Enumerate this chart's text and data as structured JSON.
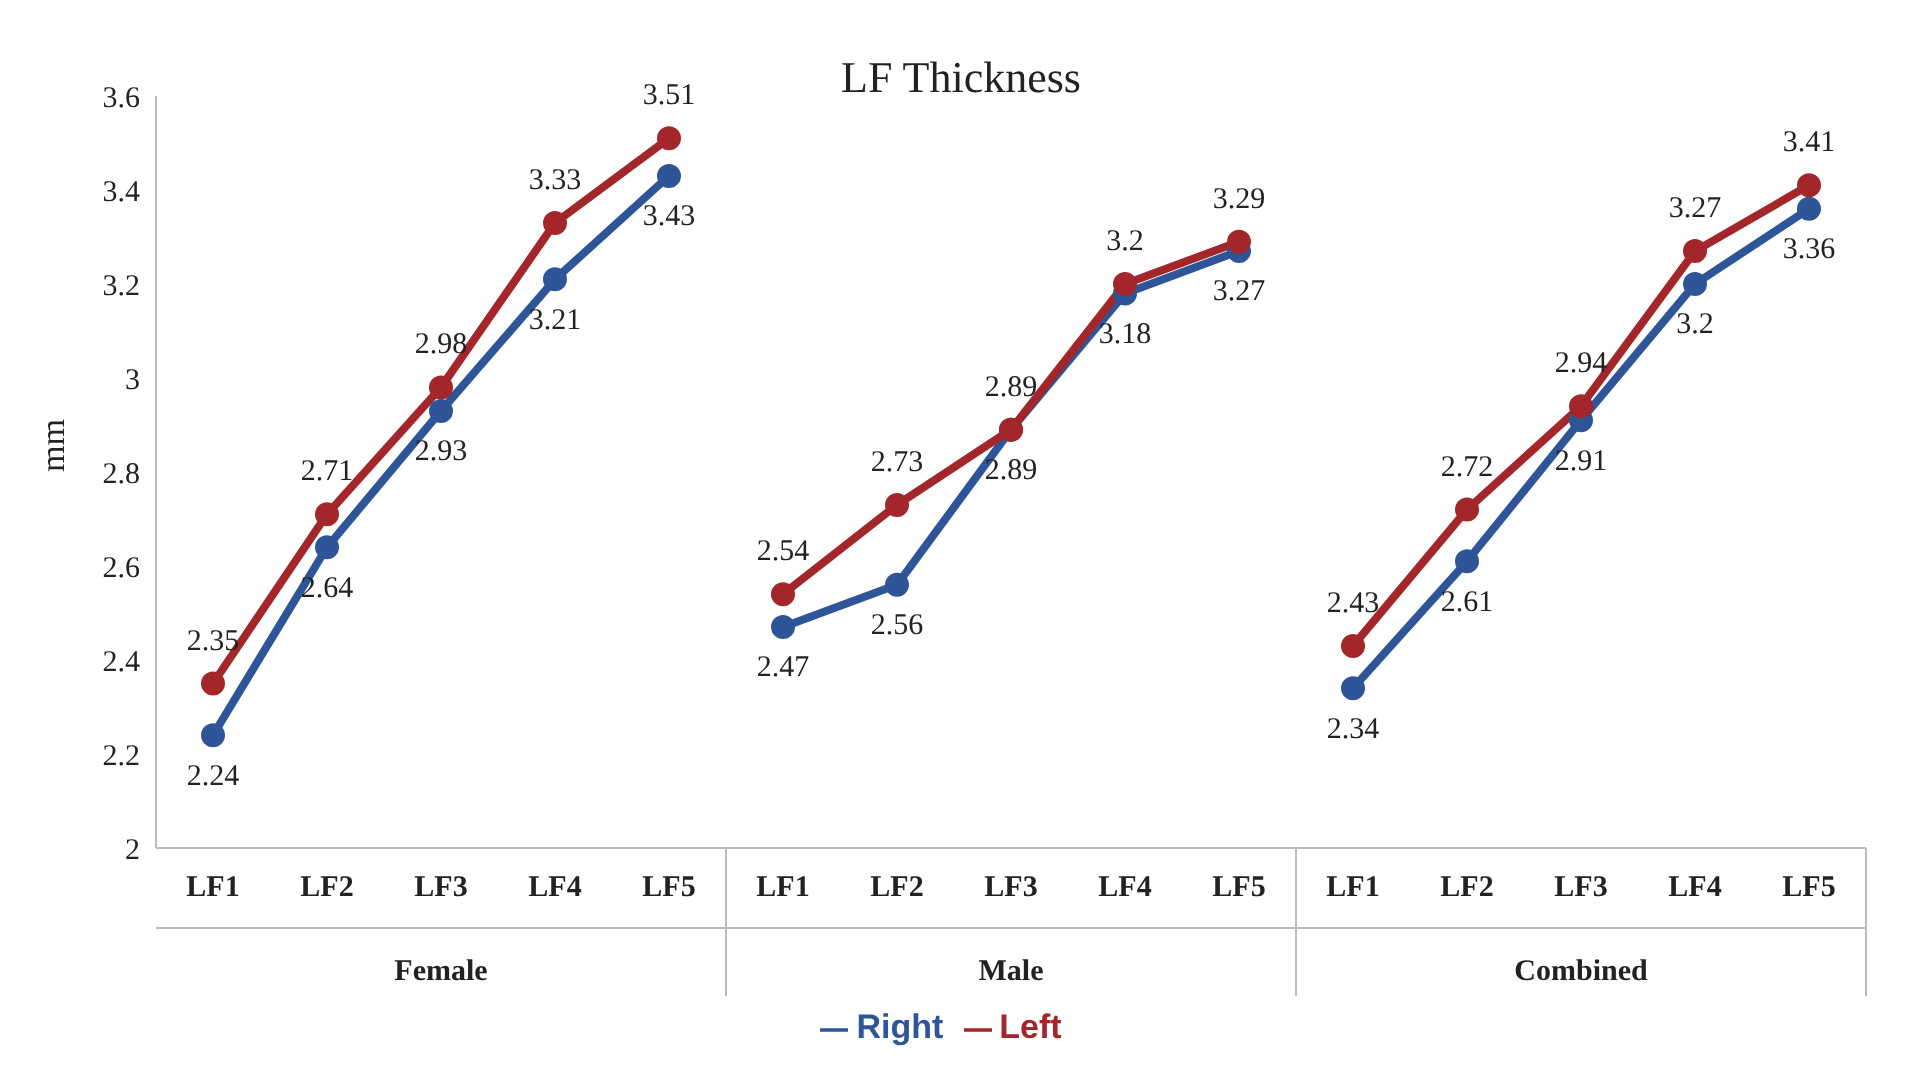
{
  "chart_data": {
    "type": "line",
    "title": "LF Thickness",
    "ylabel": "mm",
    "categories": [
      "LF1",
      "LF2",
      "LF3",
      "LF4",
      "LF5",
      "LF1",
      "LF2",
      "LF3",
      "LF4",
      "LF5",
      "LF1",
      "LF2",
      "LF3",
      "LF4",
      "LF5"
    ],
    "annotations": [
      "Female",
      "Male",
      "Combined"
    ],
    "series": [
      {
        "name": "Right",
        "color": "#2e5597",
        "values": [
          2.24,
          2.64,
          2.93,
          3.21,
          3.43,
          2.47,
          2.56,
          2.89,
          3.18,
          3.27,
          2.34,
          2.61,
          2.91,
          3.2,
          3.36
        ]
      },
      {
        "name": "Left",
        "color": "#a3262a",
        "values": [
          2.35,
          2.71,
          2.98,
          3.33,
          3.51,
          2.54,
          2.73,
          2.89,
          3.2,
          3.29,
          2.43,
          2.72,
          2.94,
          3.27,
          3.41
        ]
      }
    ],
    "ylim": [
      2,
      3.6
    ],
    "yticks": [
      2,
      2.2,
      2.4,
      2.6,
      2.8,
      3,
      3.2,
      3.4,
      3.6
    ],
    "marker": "circle",
    "line_style": "solid",
    "data_labels": true,
    "legend": "bottom",
    "grid": false
  }
}
